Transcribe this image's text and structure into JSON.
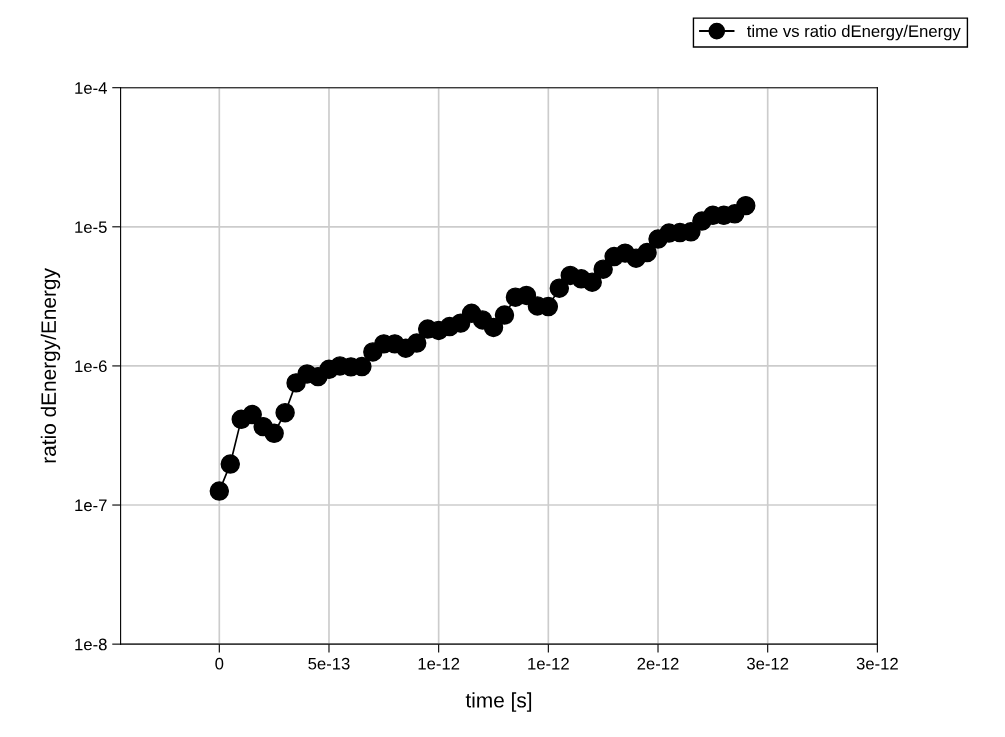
{
  "chart_data": {
    "type": "line",
    "xlabel": "time [s]",
    "ylabel": "ratio dEnergy/Energy",
    "log": "y",
    "grid": true,
    "legend": "top right",
    "marker": "circle",
    "line_style": "solid",
    "xlim": [
      -4.5e-13,
      3e-12
    ],
    "xticks": [
      {
        "value": 0,
        "label": "0"
      },
      {
        "value": 5e-13,
        "label": "5e-13"
      },
      {
        "value": 1e-12,
        "label": "1e-12"
      },
      {
        "value": 1.5e-12,
        "label": "1e-12"
      },
      {
        "value": 2e-12,
        "label": "2e-12"
      },
      {
        "value": 2.5e-12,
        "label": "3e-12"
      },
      {
        "value": 3e-12,
        "label": "3e-12"
      }
    ],
    "ylim": [
      1e-08,
      0.0001
    ],
    "yticks": [
      {
        "value": 1e-08,
        "label": "1e-8"
      },
      {
        "value": 1e-07,
        "label": "1e-7"
      },
      {
        "value": 1e-06,
        "label": "1e-6"
      },
      {
        "value": 1e-05,
        "label": "1e-5"
      },
      {
        "value": 0.0001,
        "label": "1e-4"
      }
    ],
    "x": [
      0,
      5e-14,
      1e-13,
      1.5e-13,
      2e-13,
      2.5e-13,
      3e-13,
      3.5e-13,
      4e-13,
      4.5e-13,
      5e-13,
      5.5e-13,
      6e-13,
      6.5e-13,
      7e-13,
      7.5e-13,
      8e-13,
      8.5e-13,
      9e-13,
      9.5e-13,
      1e-12,
      1.05e-12,
      1.1e-12,
      1.15e-12,
      1.2e-12,
      1.25e-12,
      1.3e-12,
      1.35e-12,
      1.4e-12,
      1.45e-12,
      1.5e-12,
      1.55e-12,
      1.6e-12,
      1.65e-12,
      1.7e-12,
      1.75e-12,
      1.8e-12,
      1.85e-12,
      1.9e-12,
      1.95e-12,
      2e-12,
      2.05e-12,
      2.1e-12,
      2.15e-12,
      2.2e-12,
      2.25e-12,
      2.3e-12,
      2.35e-12,
      2.4e-12
    ],
    "series": [
      {
        "name": "time vs ratio dEnergy/Energy",
        "color": "#000000",
        "values": [
          1.26e-07,
          1.97e-07,
          4.13e-07,
          4.47e-07,
          3.66e-07,
          3.28e-07,
          4.61e-07,
          7.55e-07,
          8.75e-07,
          8.38e-07,
          9.46e-07,
          1e-06,
          9.84e-07,
          9.9e-07,
          1.26e-06,
          1.44e-06,
          1.44e-06,
          1.34e-06,
          1.46e-06,
          1.84e-06,
          1.8e-06,
          1.92e-06,
          2.03e-06,
          2.39e-06,
          2.14e-06,
          1.89e-06,
          2.32e-06,
          3.12e-06,
          3.21e-06,
          2.7e-06,
          2.67e-06,
          3.62e-06,
          4.47e-06,
          4.23e-06,
          4e-06,
          4.96e-06,
          6.11e-06,
          6.47e-06,
          5.95e-06,
          6.53e-06,
          8.16e-06,
          9.02e-06,
          9.1e-06,
          9.21e-06,
          1.1e-05,
          1.21e-05,
          1.21e-05,
          1.24e-05,
          1.42e-05
        ]
      }
    ]
  }
}
